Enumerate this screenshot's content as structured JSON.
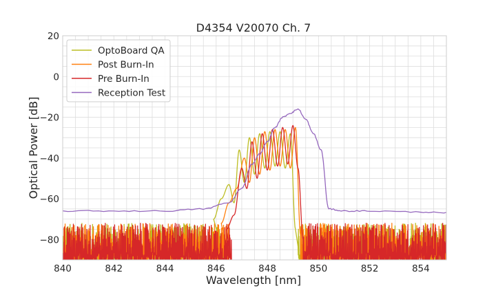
{
  "chart_data": {
    "type": "line",
    "title": "D4354 V20070 Ch. 7",
    "xlabel": "Wavelength [nm]",
    "ylabel": "Optical Power [dB]",
    "xlim": [
      840,
      855
    ],
    "ylim": [
      -90,
      20
    ],
    "xticks": [
      840,
      842,
      844,
      846,
      848,
      850,
      852,
      854
    ],
    "xtick_labels": [
      "840",
      "842",
      "844",
      "846",
      "848",
      "850",
      "852",
      "854"
    ],
    "yticks": [
      -80,
      -60,
      -40,
      -20,
      0,
      20
    ],
    "ytick_labels": [
      "−80",
      "−60",
      "−40",
      "−20",
      "0",
      "20"
    ],
    "grid": true,
    "legend_position": "top-left",
    "series": [
      {
        "name": "OptoBoard QA",
        "color": "#bcbd22",
        "noise": {
          "x_range": [
            840,
            846.3
          ],
          "x_range_2": [
            849.2,
            855
          ],
          "level": -80
        },
        "x": [
          845.9,
          846.2,
          846.5,
          846.7,
          846.9,
          847.1,
          847.3,
          847.5,
          847.7,
          847.9,
          848.1,
          848.3,
          848.5,
          848.7,
          848.9,
          849.1
        ],
        "y": [
          -70,
          -60,
          -53,
          -62,
          -36,
          -52,
          -30,
          -48,
          -28,
          -45,
          -27,
          -44,
          -27,
          -45,
          -28,
          -75
        ]
      },
      {
        "name": "Post Burn-In",
        "color": "#ff7f0e",
        "noise": {
          "x_range": [
            840,
            846.5
          ],
          "x_range_2": [
            849.3,
            855
          ],
          "level": -80
        },
        "x": [
          846.2,
          846.5,
          846.8,
          847.1,
          847.3,
          847.5,
          847.7,
          847.9,
          848.1,
          848.3,
          848.5,
          848.7,
          848.9,
          849.1,
          849.3
        ],
        "y": [
          -72,
          -62,
          -55,
          -40,
          -52,
          -30,
          -48,
          -27,
          -46,
          -26,
          -44,
          -26,
          -45,
          -25,
          -78
        ]
      },
      {
        "name": "Pre Burn-In",
        "color": "#d62728",
        "noise": {
          "x_range": [
            840,
            846.6
          ],
          "x_range_2": [
            849.4,
            855
          ],
          "level": -80
        },
        "x": [
          846.4,
          846.7,
          847.0,
          847.2,
          847.4,
          847.6,
          847.8,
          848.0,
          848.2,
          848.4,
          848.6,
          848.8,
          849.0,
          849.2,
          849.4
        ],
        "y": [
          -75,
          -68,
          -45,
          -55,
          -32,
          -50,
          -28,
          -46,
          -26,
          -44,
          -25,
          -43,
          -24,
          -45,
          -80
        ]
      },
      {
        "name": "Reception Test",
        "color": "#9467bd",
        "x": [
          840,
          842,
          844,
          845.5,
          846.5,
          847,
          847.4,
          847.7,
          848.0,
          848.3,
          848.6,
          848.9,
          849.2,
          849.5,
          849.8,
          850.1,
          850.4,
          851,
          852,
          854,
          855
        ],
        "y": [
          -66,
          -66,
          -66,
          -65,
          -62,
          -55,
          -43,
          -38,
          -32,
          -25,
          -20,
          -18,
          -16,
          -21,
          -28,
          -36,
          -65,
          -66,
          -66,
          -66.5,
          -67
        ]
      }
    ]
  }
}
